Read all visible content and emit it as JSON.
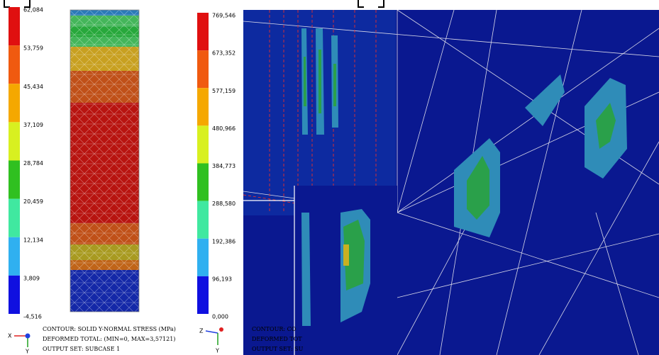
{
  "left_panel": {
    "legend": [
      "62,084",
      "53,759",
      "45,434",
      "37,109",
      "28,784",
      "20,459",
      "12,134",
      "3,809",
      "-4,516"
    ],
    "triad": [
      "X",
      "Y"
    ],
    "caption": [
      "CONTOUR: SOLID Y-NORMAL STRESS (MPa)",
      "DEFORMED TOTAL: (MIN=0, MAX=3,57121)",
      "OUTPUT SET: SUBCASE 1"
    ]
  },
  "right_panel": {
    "legend": [
      "769,546",
      "673,352",
      "577,159",
      "480,966",
      "384,773",
      "288,580",
      "192,386",
      "96,193",
      "0,000"
    ],
    "triad": [
      "Z",
      "Y"
    ],
    "caption": [
      "CONTOUR: CO",
      "DEFORMED TOT",
      "OUTPUT SET: SU"
    ]
  }
}
